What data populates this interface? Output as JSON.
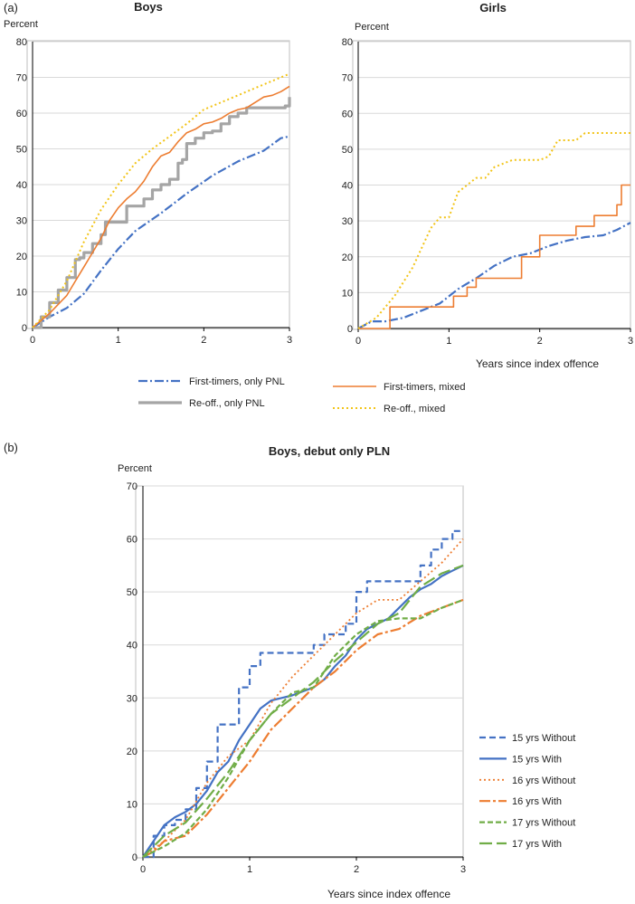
{
  "panel_labels": {
    "a": "(a)",
    "b": "(b)"
  },
  "chart_data": [
    {
      "id": "boys_a",
      "type": "line",
      "title": "Boys",
      "ylabel": "Percent",
      "xlabel": "",
      "xlim": [
        0,
        3
      ],
      "ylim": [
        0,
        80
      ],
      "xticks": [
        0,
        1,
        2,
        3
      ],
      "yticks": [
        0,
        10,
        20,
        30,
        40,
        50,
        60,
        70,
        80
      ],
      "grid": "horizontal",
      "series": [
        {
          "name": "First-timers, only PNL",
          "color": "#4472C4",
          "dash": "10,3,2,3",
          "width": 2.2,
          "step": false,
          "x": [
            0,
            0.2,
            0.4,
            0.6,
            0.8,
            1.0,
            1.2,
            1.5,
            1.8,
            2.1,
            2.4,
            2.7,
            2.9,
            3.0
          ],
          "y": [
            0,
            3,
            5.5,
            9.5,
            16,
            22,
            27,
            32,
            37.5,
            42.5,
            46.5,
            49.5,
            53,
            53.5
          ]
        },
        {
          "name": "Re-off., only PNL",
          "color": "#A5A5A5",
          "dash": "",
          "width": 3.2,
          "step": true,
          "x": [
            0,
            0.1,
            0.2,
            0.3,
            0.4,
            0.5,
            0.55,
            0.6,
            0.7,
            0.75,
            0.8,
            0.85,
            0.9,
            1.0,
            1.1,
            1.2,
            1.3,
            1.4,
            1.5,
            1.6,
            1.7,
            1.75,
            1.8,
            1.9,
            2.0,
            2.1,
            2.2,
            2.3,
            2.4,
            2.5,
            2.6,
            2.7,
            2.8,
            2.9,
            2.95,
            3.0
          ],
          "y": [
            0,
            3,
            7,
            10.5,
            14,
            19,
            19.5,
            21,
            23.5,
            23.5,
            26,
            29.5,
            29.5,
            29.5,
            34,
            34,
            36,
            38.5,
            40,
            41.5,
            46,
            47,
            51.5,
            53,
            54.5,
            55,
            57,
            59,
            60,
            61.5,
            61.5,
            61.5,
            61.5,
            61.5,
            62,
            64.5
          ]
        },
        {
          "name": "First-timers, mixed",
          "color": "#ED7D31",
          "dash": "",
          "width": 1.6,
          "step": false,
          "x": [
            0,
            0.2,
            0.4,
            0.5,
            0.6,
            0.7,
            0.8,
            0.9,
            1.0,
            1.1,
            1.2,
            1.3,
            1.4,
            1.5,
            1.6,
            1.7,
            1.8,
            1.9,
            2.0,
            2.1,
            2.2,
            2.3,
            2.4,
            2.5,
            2.6,
            2.7,
            2.8,
            2.9,
            3.0
          ],
          "y": [
            0,
            4,
            9,
            13,
            17,
            21,
            25,
            30,
            33.5,
            36,
            38,
            41,
            45,
            48,
            49,
            52,
            54.5,
            55.5,
            57,
            57.5,
            58.5,
            60,
            61,
            61.5,
            63,
            64.5,
            65,
            66,
            67.5
          ]
        },
        {
          "name": "Re-off., mixed",
          "color": "#F2C418",
          "dash": "2,3",
          "width": 2.0,
          "step": false,
          "x": [
            0,
            0.2,
            0.4,
            0.6,
            0.8,
            1.0,
            1.2,
            1.4,
            1.6,
            1.8,
            2.0,
            2.2,
            2.4,
            2.6,
            2.8,
            3.0
          ],
          "y": [
            0,
            5,
            13,
            24,
            33,
            40,
            46,
            50,
            53.5,
            57,
            61,
            63,
            65,
            67,
            69,
            71
          ]
        }
      ]
    },
    {
      "id": "girls_a",
      "type": "line",
      "title": "Girls",
      "ylabel": "Percent",
      "xlabel": "Years since index offence",
      "xlim": [
        0,
        3
      ],
      "ylim": [
        0,
        80
      ],
      "xticks": [
        0,
        1,
        2,
        3
      ],
      "yticks": [
        0,
        10,
        20,
        30,
        40,
        50,
        60,
        70,
        80
      ],
      "grid": "horizontal",
      "series": [
        {
          "name": "First-timers, only PNL",
          "color": "#4472C4",
          "dash": "10,3,2,3",
          "width": 2.2,
          "step": false,
          "x": [
            0,
            0.15,
            0.3,
            0.5,
            0.7,
            0.9,
            1.1,
            1.3,
            1.5,
            1.7,
            1.9,
            2.1,
            2.3,
            2.5,
            2.7,
            2.85,
            3.0
          ],
          "y": [
            0,
            2,
            2,
            3,
            5,
            7,
            11,
            14,
            17.5,
            20,
            21,
            23,
            24.5,
            25.5,
            26,
            27.5,
            29.5
          ]
        },
        {
          "name": "First-timers, mixed",
          "color": "#ED7D31",
          "dash": "",
          "width": 1.6,
          "step": true,
          "x": [
            0,
            0.3,
            0.35,
            0.95,
            1.05,
            1.2,
            1.3,
            1.7,
            1.8,
            1.9,
            2.0,
            2.3,
            2.4,
            2.5,
            2.6,
            2.75,
            2.85,
            2.9,
            3.0
          ],
          "y": [
            0,
            0,
            6,
            6,
            9,
            11.5,
            14,
            14,
            20,
            20,
            26,
            26,
            28.5,
            28.5,
            31.5,
            31.5,
            34.5,
            40,
            40
          ]
        },
        {
          "name": "Re-off., mixed",
          "color": "#F2C418",
          "dash": "2,3",
          "width": 2.0,
          "step": false,
          "x": [
            0,
            0.2,
            0.4,
            0.6,
            0.8,
            0.9,
            1.0,
            1.1,
            1.2,
            1.3,
            1.4,
            1.5,
            1.6,
            1.7,
            1.8,
            1.9,
            2.0,
            2.1,
            2.2,
            2.3,
            2.4,
            2.5,
            2.6,
            2.7,
            2.8,
            2.9,
            3.0
          ],
          "y": [
            0,
            3,
            9,
            17,
            28,
            31,
            31,
            38,
            40,
            42,
            42,
            45,
            46,
            47,
            47,
            47,
            47,
            48,
            52.5,
            52.5,
            52.5,
            54.5,
            54.5,
            54.5,
            54.5,
            54.5,
            54.5
          ]
        }
      ]
    },
    {
      "id": "boys_b",
      "type": "line",
      "title": "Boys, debut only PLN",
      "ylabel": "Percent",
      "xlabel": "Years since index offence",
      "xlim": [
        0,
        3
      ],
      "ylim": [
        0,
        70
      ],
      "xticks": [
        0,
        1,
        2,
        3
      ],
      "yticks": [
        0,
        10,
        20,
        30,
        40,
        50,
        60,
        70
      ],
      "grid": "horizontal",
      "series": [
        {
          "name": "15 yrs Without",
          "color": "#4472C4",
          "dash": "7,4",
          "width": 2.2,
          "step": true,
          "x": [
            0,
            0.1,
            0.2,
            0.3,
            0.4,
            0.5,
            0.6,
            0.7,
            0.8,
            0.9,
            1.0,
            1.1,
            1.2,
            1.5,
            1.6,
            1.7,
            1.8,
            1.9,
            2.0,
            2.1,
            2.5,
            2.6,
            2.7,
            2.8,
            2.9,
            3.0
          ],
          "y": [
            0,
            4,
            6,
            7,
            9,
            13,
            18,
            25,
            25,
            32,
            36,
            38.5,
            38.5,
            38.5,
            40,
            42,
            42,
            44,
            50,
            52,
            52,
            55,
            58,
            60,
            61.5,
            61.5
          ]
        },
        {
          "name": "15 yrs With",
          "color": "#4472C4",
          "dash": "",
          "width": 2.2,
          "step": false,
          "x": [
            0,
            0.1,
            0.2,
            0.3,
            0.4,
            0.5,
            0.6,
            0.7,
            0.8,
            0.9,
            1.0,
            1.1,
            1.2,
            1.4,
            1.6,
            1.7,
            1.8,
            1.9,
            2.0,
            2.1,
            2.2,
            2.3,
            2.4,
            2.5,
            2.6,
            2.7,
            2.8,
            2.9,
            3.0
          ],
          "y": [
            0,
            3,
            6,
            7.5,
            8.5,
            10,
            12.5,
            16,
            18,
            22,
            25,
            28,
            29.5,
            30.5,
            32,
            33.5,
            36,
            38,
            41,
            43,
            44,
            45,
            47,
            49,
            50.5,
            51.5,
            53,
            54,
            55
          ]
        },
        {
          "name": "16 yrs Without",
          "color": "#ED7D31",
          "dash": "2,3",
          "width": 1.8,
          "step": false,
          "x": [
            0,
            0.2,
            0.4,
            0.6,
            0.8,
            1.0,
            1.2,
            1.4,
            1.6,
            1.8,
            2.0,
            2.2,
            2.4,
            2.6,
            2.8,
            3.0
          ],
          "y": [
            0,
            3,
            7,
            14,
            19,
            22,
            29,
            34,
            38,
            42,
            46,
            48.5,
            48.5,
            52,
            55.5,
            60
          ]
        },
        {
          "name": "16 yrs With",
          "color": "#ED7D31",
          "dash": "12,3,3,3",
          "width": 2.2,
          "step": false,
          "x": [
            0,
            0.1,
            0.2,
            0.4,
            0.6,
            0.8,
            1.0,
            1.2,
            1.4,
            1.6,
            1.8,
            2.0,
            2.2,
            2.4,
            2.6,
            2.8,
            3.0
          ],
          "y": [
            0,
            1,
            3,
            4,
            8,
            13,
            18,
            24,
            28,
            32,
            35,
            39,
            42,
            43,
            45.5,
            47,
            48.5
          ]
        },
        {
          "name": "17 yrs Without",
          "color": "#70AD47",
          "dash": "6,3",
          "width": 2.2,
          "step": false,
          "x": [
            0,
            0.2,
            0.4,
            0.6,
            0.8,
            1.0,
            1.2,
            1.4,
            1.6,
            1.8,
            2.0,
            2.2,
            2.4,
            2.6,
            2.8,
            3.0
          ],
          "y": [
            0,
            2,
            4.5,
            9,
            15,
            22,
            27,
            31,
            32,
            38,
            42,
            44.5,
            45,
            45,
            47,
            48.5
          ]
        },
        {
          "name": "17 yrs With",
          "color": "#70AD47",
          "dash": "14,5",
          "width": 2.2,
          "step": false,
          "x": [
            0,
            0.2,
            0.4,
            0.6,
            0.8,
            1.0,
            1.2,
            1.4,
            1.6,
            1.8,
            2.0,
            2.2,
            2.4,
            2.6,
            2.8,
            3.0
          ],
          "y": [
            0,
            4,
            6.5,
            11,
            16,
            22,
            27,
            30,
            33,
            37,
            40.5,
            44,
            46,
            51,
            53.5,
            55
          ]
        }
      ]
    }
  ]
}
